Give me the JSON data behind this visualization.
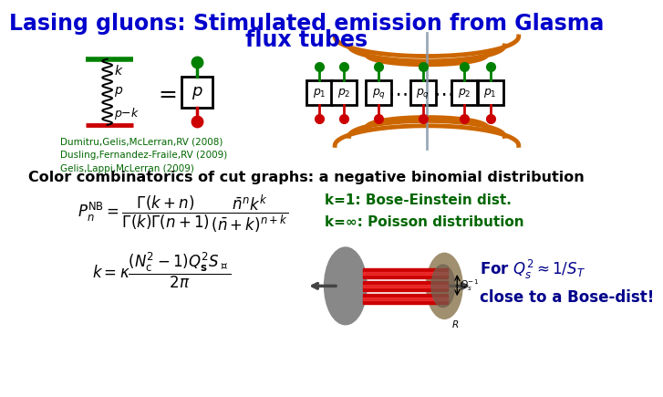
{
  "title_line1": "Lasing gluons: Stimulated emission from Glasma",
  "title_line2": "flux tubes",
  "title_color": "#0000cc",
  "title_fontsize": 17,
  "ref_text": "Dumitru,Gelis,McLerran,RV (2008)\nDusling,Fernandez-Fraile,RV (2009)\nGelis,Lappi,McLerran (2009)",
  "ref_color": "#006600",
  "ref_fontsize": 7.5,
  "section2_text": "Color combinatorics of cut graphs: a negative binomial distribution",
  "section2_fontsize": 11.5,
  "formula1": "$P_n^{\\rm NB} = \\dfrac{\\Gamma(k+n)}{\\Gamma(k)\\Gamma(n+1)} \\dfrac{\\bar{n}^n k^k}{(\\bar{n}+k)^{n+k}}$",
  "formula1_fontsize": 12,
  "formula2": "$k = \\kappa \\dfrac{(N_{\\rm c}^2-1)Q_{\\bf s}^2 S_\\perp}{2\\pi}$",
  "formula2_fontsize": 12,
  "bose_text": "k=1: Bose-Einstein dist.\nk=∞: Poisson distribution",
  "bose_color": "#006600",
  "bose_fontsize": 11,
  "qs_text": "For $Q_s^2 \\approx 1/S_T$\nclose to a Bose-dist!",
  "qs_color": "#00008B",
  "qs_fontsize": 12,
  "bg_color": "#ffffff",
  "green_color": "#008000",
  "red_color": "#cc0000",
  "orange_color": "#cc6600",
  "dark_blue": "#00008B",
  "cut_line_color": "#8899aa",
  "gray_color": "#999999"
}
